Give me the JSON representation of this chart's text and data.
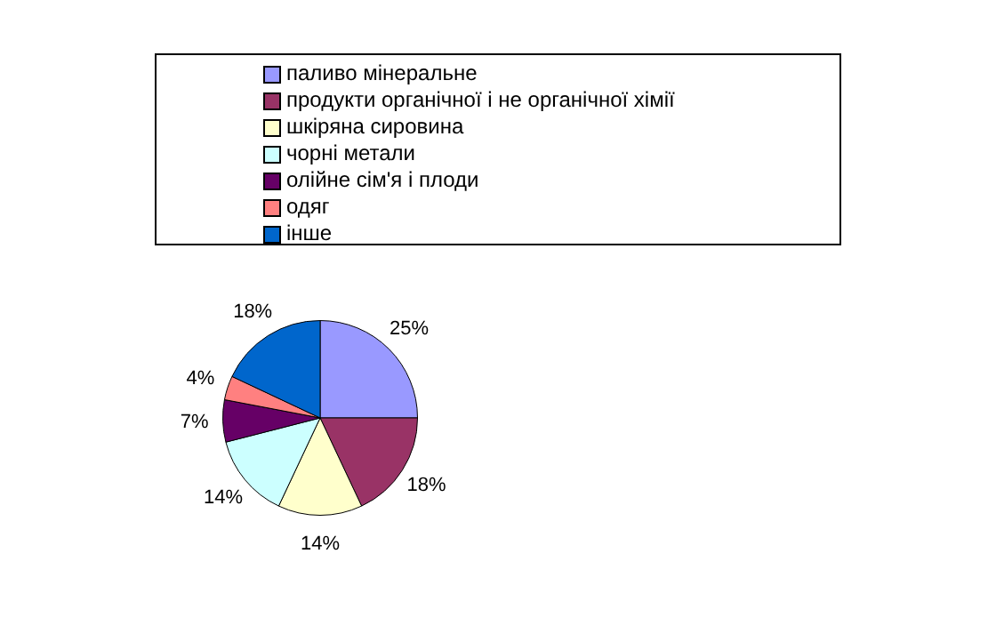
{
  "chart_data": {
    "type": "pie",
    "categories": [
      "паливо мінеральне",
      "продукти органічної і не органічної хімії",
      "шкіряна сировина",
      "чорні метали",
      "олійне сім'я і плоди",
      "одяг",
      "інше"
    ],
    "values": [
      25,
      18,
      14,
      14,
      7,
      4,
      18
    ],
    "colors": [
      "#9999ff",
      "#993366",
      "#ffffcc",
      "#ccffff",
      "#660066",
      "#ff8080",
      "#0066cc"
    ],
    "value_labels": [
      "25%",
      "18%",
      "14%",
      "14%",
      "7%",
      "4%",
      "18%"
    ],
    "legend": "top"
  }
}
